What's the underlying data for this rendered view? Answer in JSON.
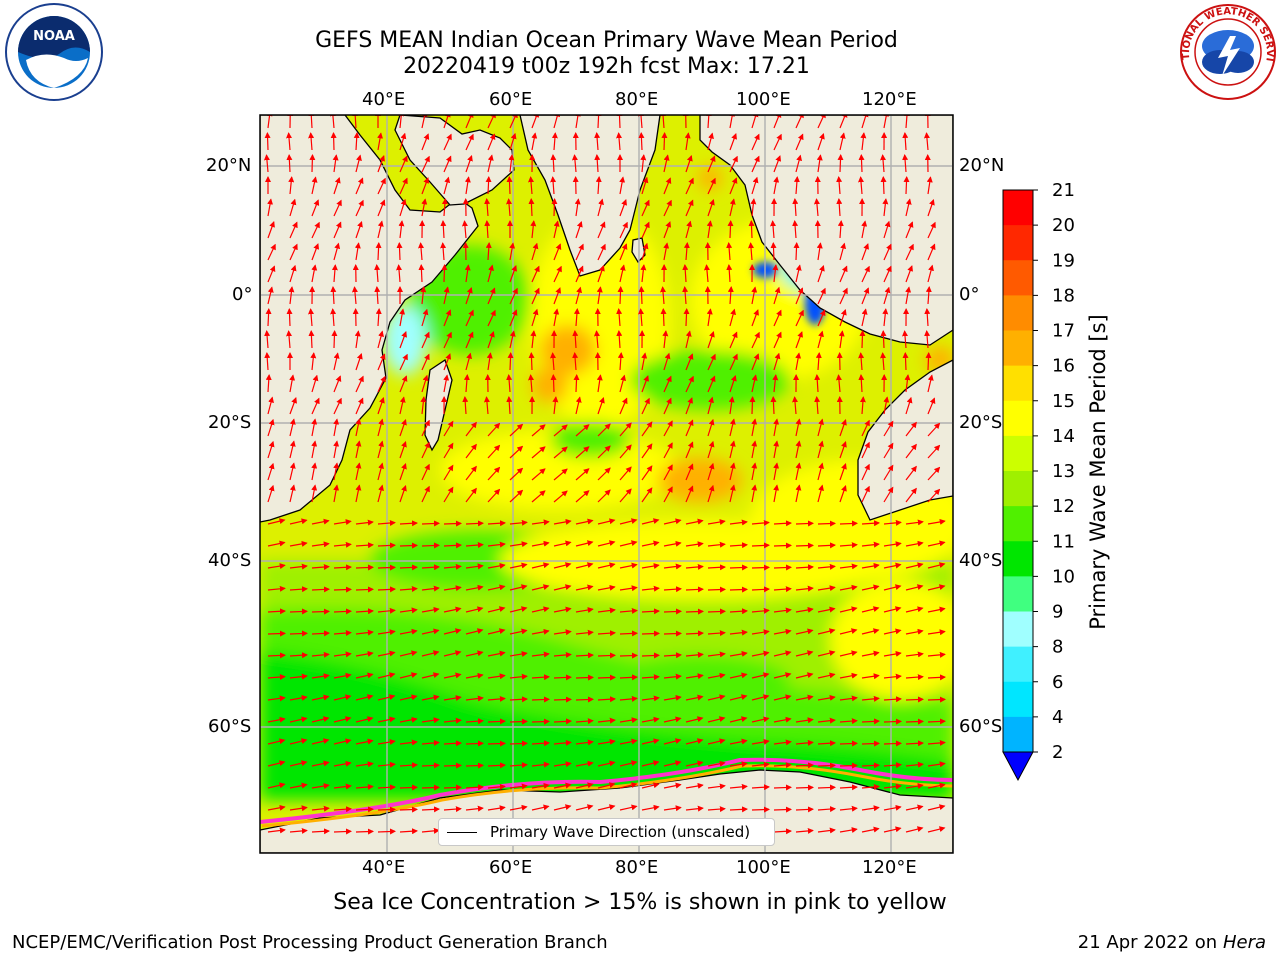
{
  "title": {
    "line1": "GEFS MEAN Indian Ocean Primary Wave Mean Period",
    "line2": "20220419 t00z 192h fcst   Max: 17.21"
  },
  "axes": {
    "lon_ticks": [
      "40°E",
      "60°E",
      "80°E",
      "100°E",
      "120°E"
    ],
    "lat_ticks": [
      "20°N",
      "0°",
      "20°S",
      "40°S",
      "60°S"
    ]
  },
  "legend": {
    "label": "Primary Wave Direction (unscaled)"
  },
  "colorbar": {
    "label": "Primary Wave Mean Period [s]",
    "ticks": [
      "2",
      "4",
      "6",
      "8",
      "9",
      "10",
      "11",
      "12",
      "13",
      "14",
      "15",
      "16",
      "17",
      "18",
      "19",
      "20",
      "21"
    ],
    "colors": [
      "#0050ff",
      "#00b4ff",
      "#00e6ff",
      "#40f0ff",
      "#a0ffff",
      "#40ff80",
      "#00e600",
      "#50f000",
      "#9ff000",
      "#ccff00",
      "#ffff00",
      "#ffe000",
      "#ffb000",
      "#ff8c00",
      "#ff5a00",
      "#ff2800",
      "#ff0000"
    ],
    "under_color": "#0000ff"
  },
  "notes": {
    "ice": "Sea Ice Concentration > 15% is shown in pink to yellow"
  },
  "footer": {
    "left": "NCEP/EMC/Verification Post Processing Product Generation Branch",
    "date": "21 Apr 2022 on ",
    "machine": "Hera"
  },
  "logos": {
    "left": "NOAA",
    "right": "NATIONAL WEATHER SERVICE"
  },
  "palette": {
    "land": "#efecdc",
    "arrow": "#ff0000",
    "grid": "#b0b0b0"
  }
}
